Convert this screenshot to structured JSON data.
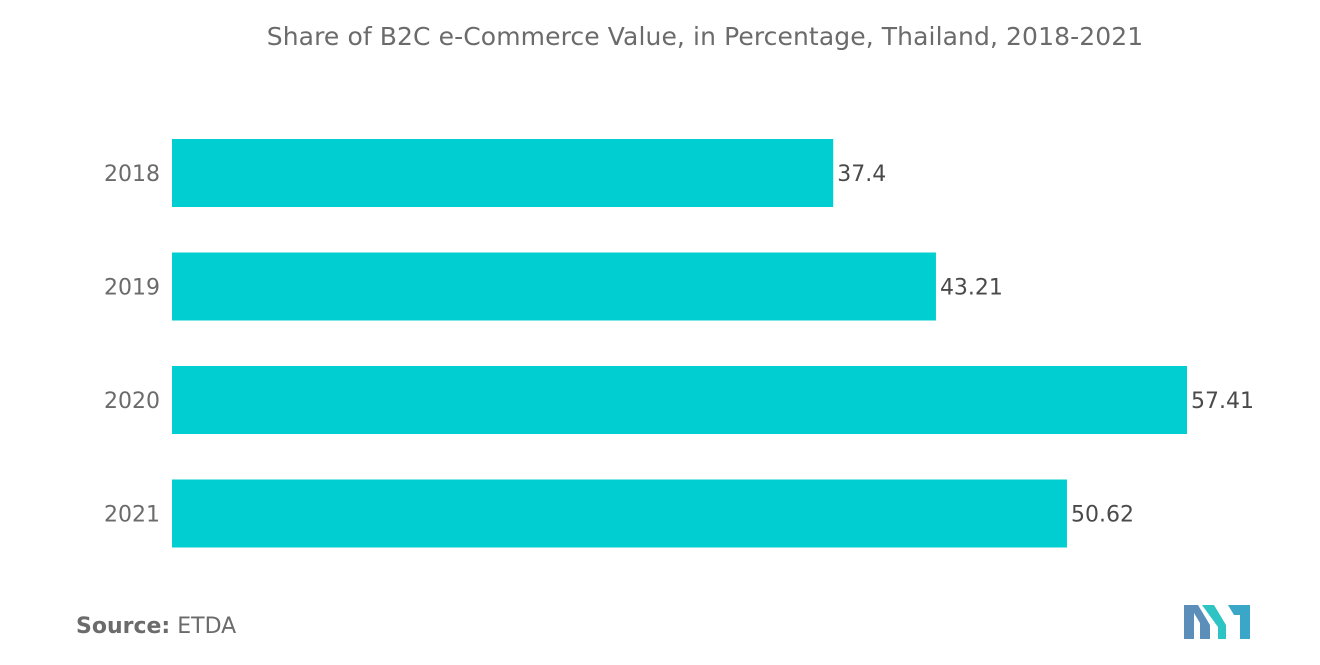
{
  "chart_data": {
    "type": "bar",
    "orientation": "horizontal",
    "title": "Share of B2C e-Commerce Value, in Percentage, Thailand, 2018-2021",
    "categories": [
      "2018",
      "2019",
      "2020",
      "2021"
    ],
    "values": [
      37.4,
      43.21,
      57.41,
      50.62
    ],
    "value_labels": [
      "37.4",
      "43.21",
      "57.41",
      "50.62"
    ],
    "xlim": [
      0,
      57.41
    ],
    "grid": false,
    "legend": "none",
    "bar_color": "#00ced1"
  },
  "source": {
    "label": "Source:",
    "text": "ETDA"
  },
  "logo": {
    "icon": "mordor-intelligence-logo-icon",
    "colors": [
      "#5b8fb9",
      "#2ec4c4"
    ]
  }
}
